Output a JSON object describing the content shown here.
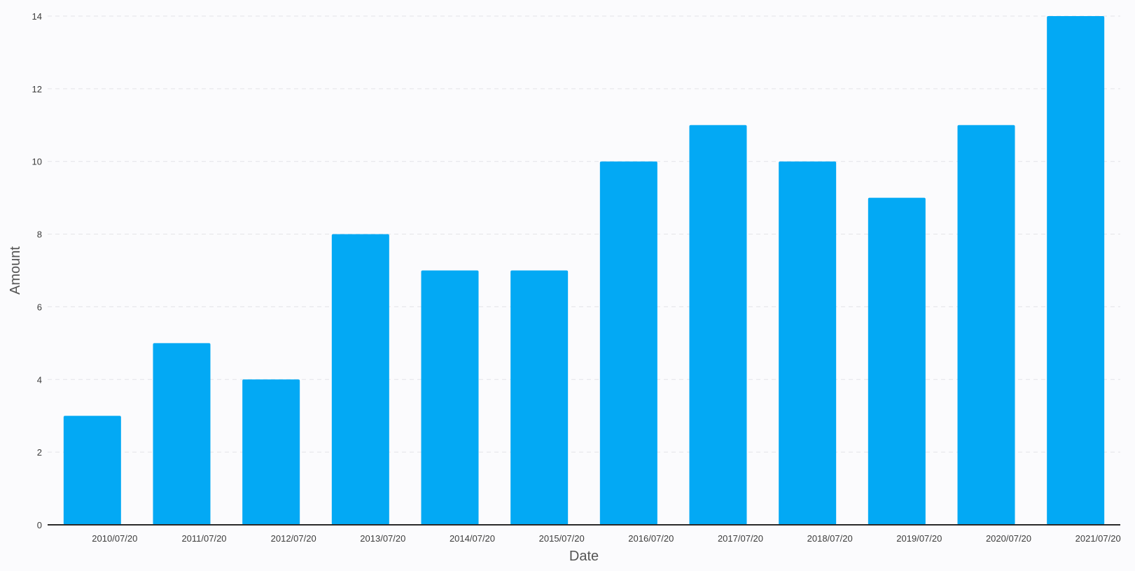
{
  "chart_data": {
    "type": "bar",
    "title": "",
    "xlabel": "Date",
    "ylabel": "Amount",
    "categories": [
      "2010/07/20",
      "2011/07/20",
      "2012/07/20",
      "2013/07/20",
      "2014/07/20",
      "2015/07/20",
      "2016/07/20",
      "2017/07/20",
      "2018/07/20",
      "2019/07/20",
      "2020/07/20",
      "2021/07/20"
    ],
    "values": [
      3,
      5,
      4,
      8,
      7,
      7,
      10,
      11,
      10,
      9,
      11,
      14
    ],
    "ylim": [
      0,
      14
    ],
    "yticks": [
      0,
      2,
      4,
      6,
      8,
      10,
      12,
      14
    ],
    "grid": true,
    "bar_color": "#03a9f4",
    "legend": "none"
  }
}
